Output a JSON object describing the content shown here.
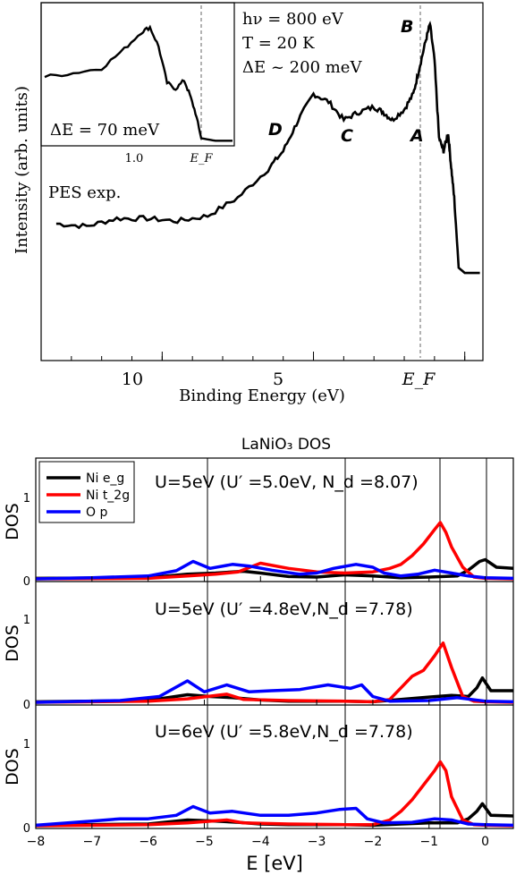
{
  "top": {
    "ylabel": "Intensity (arb. units)",
    "xlabel": "Binding Energy (eV)",
    "xticks": [
      "10",
      "5",
      "E_F"
    ],
    "params": [
      "hν = 800 eV",
      "T = 20 K",
      "ΔE ~ 200 meV"
    ],
    "series_label": "PES exp.",
    "peaks": [
      "A",
      "B",
      "C",
      "D"
    ],
    "inset": {
      "resolution": "ΔE = 70 meV",
      "xticks": [
        "1.0",
        "E_F"
      ]
    }
  },
  "bottom": {
    "title": "LaNiO₃ DOS",
    "xlabel": "E [eV]",
    "ylabel": "DOS",
    "xticks": [
      "−8",
      "−7",
      "−6",
      "−5",
      "−4",
      "−3",
      "−2",
      "−1",
      "0"
    ],
    "legend": [
      {
        "name": "Ni e_g",
        "color": "#000000"
      },
      {
        "name": "Ni t_2g",
        "color": "#ff0000"
      },
      {
        "name": "O p",
        "color": "#0000ff"
      }
    ],
    "panels": [
      {
        "label": "U=5eV (U′ =5.0eV, N_d =8.07)"
      },
      {
        "label": "U=5eV (U′ =4.8eV,N_d =7.78)"
      },
      {
        "label": "U=6eV (U′ =5.8eV,N_d =7.78)"
      }
    ],
    "yticks": [
      "0",
      "1"
    ]
  },
  "chart_data": [
    {
      "type": "line",
      "xlabel": "Binding Energy (eV)",
      "ylabel": "Intensity (arb. units)",
      "xlim": [
        14.0,
        -0.6
      ],
      "series": [
        {
          "values": [
            [
              13.5,
              0.2
            ],
            [
              12.5,
              0.19
            ],
            [
              11.5,
              0.22
            ],
            [
              10.5,
              0.22
            ],
            [
              9.5,
              0.21
            ],
            [
              8.5,
              0.23
            ],
            [
              7.5,
              0.3
            ],
            [
              6.5,
              0.41
            ],
            [
              6.0,
              0.48
            ],
            [
              5.5,
              0.6
            ],
            [
              5.0,
              0.7
            ],
            [
              4.5,
              0.67
            ],
            [
              4.0,
              0.6
            ],
            [
              3.5,
              0.63
            ],
            [
              3.0,
              0.65
            ],
            [
              2.7,
              0.63
            ],
            [
              2.4,
              0.6
            ],
            [
              2.0,
              0.64
            ],
            [
              1.7,
              0.7
            ],
            [
              1.5,
              0.8
            ],
            [
              1.3,
              0.9
            ],
            [
              1.15,
              0.97
            ],
            [
              1.0,
              0.83
            ],
            [
              0.85,
              0.53
            ],
            [
              0.7,
              0.48
            ],
            [
              0.55,
              0.55
            ],
            [
              0.45,
              0.42
            ],
            [
              0.35,
              0.3
            ],
            [
              0.2,
              0.03
            ],
            [
              0.0,
              0.01
            ],
            [
              -0.5,
              0.01
            ]
          ]
        }
      ],
      "annotations": [
        "A",
        "B",
        "C",
        "D"
      ]
    },
    {
      "type": "line",
      "xlabel": "E [eV]",
      "ylabel": "DOS",
      "xlim": [
        -8,
        0.5
      ],
      "ylim": [
        0,
        1.4
      ],
      "panels": [
        {
          "series": [
            {
              "name": "Ni e_g",
              "values": [
                [
                  -8,
                  0.01
                ],
                [
                  -6,
                  0.02
                ],
                [
                  -5.3,
                  0.08
                ],
                [
                  -4.8,
                  0.1
                ],
                [
                  -4.3,
                  0.13
                ],
                [
                  -4.0,
                  0.1
                ],
                [
                  -3.5,
                  0.04
                ],
                [
                  -3.0,
                  0.03
                ],
                [
                  -2.5,
                  0.07
                ],
                [
                  -2.0,
                  0.05
                ],
                [
                  -1.5,
                  0.02
                ],
                [
                  -1.0,
                  0.03
                ],
                [
                  -0.5,
                  0.05
                ],
                [
                  -0.3,
                  0.15
                ],
                [
                  -0.1,
                  0.3
                ],
                [
                  0.0,
                  0.33
                ],
                [
                  0.2,
                  0.2
                ],
                [
                  0.5,
                  0.18
                ]
              ]
            },
            {
              "name": "Ni t_2g",
              "values": [
                [
                  -8,
                  0.0
                ],
                [
                  -6,
                  0.01
                ],
                [
                  -5.3,
                  0.05
                ],
                [
                  -4.8,
                  0.08
                ],
                [
                  -4.4,
                  0.12
                ],
                [
                  -4.0,
                  0.27
                ],
                [
                  -3.5,
                  0.18
                ],
                [
                  -3.0,
                  0.12
                ],
                [
                  -2.5,
                  0.1
                ],
                [
                  -2.0,
                  0.12
                ],
                [
                  -1.7,
                  0.18
                ],
                [
                  -1.5,
                  0.25
                ],
                [
                  -1.3,
                  0.4
                ],
                [
                  -1.1,
                  0.6
                ],
                [
                  -0.9,
                  0.85
                ],
                [
                  -0.8,
                  0.97
                ],
                [
                  -0.7,
                  0.8
                ],
                [
                  -0.6,
                  0.55
                ],
                [
                  -0.4,
                  0.2
                ],
                [
                  -0.2,
                  0.03
                ],
                [
                  0.0,
                  0.01
                ],
                [
                  0.5,
                  0.0
                ]
              ]
            },
            {
              "name": "O p",
              "values": [
                [
                  -8,
                  0.0
                ],
                [
                  -7.0,
                  0.02
                ],
                [
                  -6.0,
                  0.05
                ],
                [
                  -5.5,
                  0.14
                ],
                [
                  -5.2,
                  0.3
                ],
                [
                  -4.9,
                  0.18
                ],
                [
                  -4.5,
                  0.25
                ],
                [
                  -4.2,
                  0.22
                ],
                [
                  -3.8,
                  0.15
                ],
                [
                  -3.3,
                  0.08
                ],
                [
                  -3.0,
                  0.1
                ],
                [
                  -2.7,
                  0.18
                ],
                [
                  -2.3,
                  0.25
                ],
                [
                  -2.0,
                  0.2
                ],
                [
                  -1.8,
                  0.1
                ],
                [
                  -1.5,
                  0.05
                ],
                [
                  -1.2,
                  0.08
                ],
                [
                  -0.9,
                  0.15
                ],
                [
                  -0.6,
                  0.1
                ],
                [
                  -0.3,
                  0.05
                ],
                [
                  0.0,
                  0.02
                ],
                [
                  0.5,
                  0.01
                ]
              ]
            }
          ]
        },
        {
          "series": [
            {
              "name": "Ni e_g",
              "values": [
                [
                  -8,
                  0.01
                ],
                [
                  -6,
                  0.03
                ],
                [
                  -5.3,
                  0.13
                ],
                [
                  -4.9,
                  0.1
                ],
                [
                  -4.5,
                  0.08
                ],
                [
                  -4.0,
                  0.04
                ],
                [
                  -3.5,
                  0.02
                ],
                [
                  -2.5,
                  0.02
                ],
                [
                  -2.0,
                  0.01
                ],
                [
                  -1.5,
                  0.05
                ],
                [
                  -1.0,
                  0.09
                ],
                [
                  -0.6,
                  0.12
                ],
                [
                  -0.3,
                  0.1
                ],
                [
                  -0.15,
                  0.25
                ],
                [
                  -0.05,
                  0.42
                ],
                [
                  0.1,
                  0.2
                ],
                [
                  0.5,
                  0.2
                ]
              ]
            },
            {
              "name": "Ni t_2g",
              "values": [
                [
                  -8,
                  0.0
                ],
                [
                  -6,
                  0.02
                ],
                [
                  -5.3,
                  0.06
                ],
                [
                  -4.6,
                  0.14
                ],
                [
                  -4.3,
                  0.05
                ],
                [
                  -3.5,
                  0.03
                ],
                [
                  -2.5,
                  0.02
                ],
                [
                  -2.0,
                  0.01
                ],
                [
                  -1.7,
                  0.05
                ],
                [
                  -1.5,
                  0.25
                ],
                [
                  -1.3,
                  0.45
                ],
                [
                  -1.1,
                  0.55
                ],
                [
                  -0.9,
                  0.8
                ],
                [
                  -0.75,
                  1.02
                ],
                [
                  -0.6,
                  0.6
                ],
                [
                  -0.4,
                  0.1
                ],
                [
                  -0.2,
                  0.02
                ],
                [
                  0.0,
                  0.01
                ],
                [
                  0.5,
                  0.0
                ]
              ]
            },
            {
              "name": "O p",
              "values": [
                [
                  -8,
                  0.0
                ],
                [
                  -6.5,
                  0.03
                ],
                [
                  -5.8,
                  0.1
                ],
                [
                  -5.3,
                  0.37
                ],
                [
                  -5.0,
                  0.18
                ],
                [
                  -4.6,
                  0.3
                ],
                [
                  -4.2,
                  0.18
                ],
                [
                  -3.8,
                  0.2
                ],
                [
                  -3.3,
                  0.22
                ],
                [
                  -2.8,
                  0.3
                ],
                [
                  -2.4,
                  0.24
                ],
                [
                  -2.2,
                  0.3
                ],
                [
                  -2.0,
                  0.1
                ],
                [
                  -1.7,
                  0.02
                ],
                [
                  -1.0,
                  0.03
                ],
                [
                  -0.5,
                  0.08
                ],
                [
                  0.0,
                  0.02
                ],
                [
                  0.5,
                  0.01
                ]
              ]
            }
          ]
        },
        {
          "series": [
            {
              "name": "Ni e_g",
              "values": [
                [
                  -8,
                  0.01
                ],
                [
                  -6,
                  0.03
                ],
                [
                  -5.3,
                  0.1
                ],
                [
                  -4.8,
                  0.08
                ],
                [
                  -4.4,
                  0.06
                ],
                [
                  -4.0,
                  0.03
                ],
                [
                  -3.5,
                  0.02
                ],
                [
                  -2.5,
                  0.02
                ],
                [
                  -2.0,
                  0.01
                ],
                [
                  -1.5,
                  0.03
                ],
                [
                  -1.0,
                  0.05
                ],
                [
                  -0.5,
                  0.05
                ],
                [
                  -0.3,
                  0.12
                ],
                [
                  -0.15,
                  0.25
                ],
                [
                  -0.05,
                  0.38
                ],
                [
                  0.1,
                  0.18
                ],
                [
                  0.5,
                  0.17
                ]
              ]
            },
            {
              "name": "Ni t_2g",
              "values": [
                [
                  -8,
                  0.0
                ],
                [
                  -6,
                  0.02
                ],
                [
                  -5.3,
                  0.05
                ],
                [
                  -4.6,
                  0.1
                ],
                [
                  -4.3,
                  0.05
                ],
                [
                  -3.5,
                  0.03
                ],
                [
                  -2.5,
                  0.02
                ],
                [
                  -2.0,
                  0.02
                ],
                [
                  -1.7,
                  0.1
                ],
                [
                  -1.5,
                  0.25
                ],
                [
                  -1.3,
                  0.45
                ],
                [
                  -1.1,
                  0.7
                ],
                [
                  -0.9,
                  0.95
                ],
                [
                  -0.8,
                  1.1
                ],
                [
                  -0.7,
                  0.95
                ],
                [
                  -0.6,
                  0.5
                ],
                [
                  -0.4,
                  0.1
                ],
                [
                  -0.2,
                  0.02
                ],
                [
                  0.0,
                  0.01
                ],
                [
                  0.5,
                  0.0
                ]
              ]
            },
            {
              "name": "O p",
              "values": [
                [
                  -8,
                  0.01
                ],
                [
                  -7.0,
                  0.08
                ],
                [
                  -6.5,
                  0.12
                ],
                [
                  -6.0,
                  0.12
                ],
                [
                  -5.5,
                  0.18
                ],
                [
                  -5.2,
                  0.33
                ],
                [
                  -4.9,
                  0.22
                ],
                [
                  -4.5,
                  0.25
                ],
                [
                  -4.0,
                  0.18
                ],
                [
                  -3.5,
                  0.18
                ],
                [
                  -3.0,
                  0.22
                ],
                [
                  -2.6,
                  0.28
                ],
                [
                  -2.3,
                  0.3
                ],
                [
                  -2.1,
                  0.12
                ],
                [
                  -1.8,
                  0.05
                ],
                [
                  -1.3,
                  0.06
                ],
                [
                  -0.9,
                  0.12
                ],
                [
                  -0.6,
                  0.1
                ],
                [
                  -0.3,
                  0.03
                ],
                [
                  0.0,
                  0.02
                ],
                [
                  0.5,
                  0.01
                ]
              ]
            }
          ]
        }
      ]
    }
  ]
}
